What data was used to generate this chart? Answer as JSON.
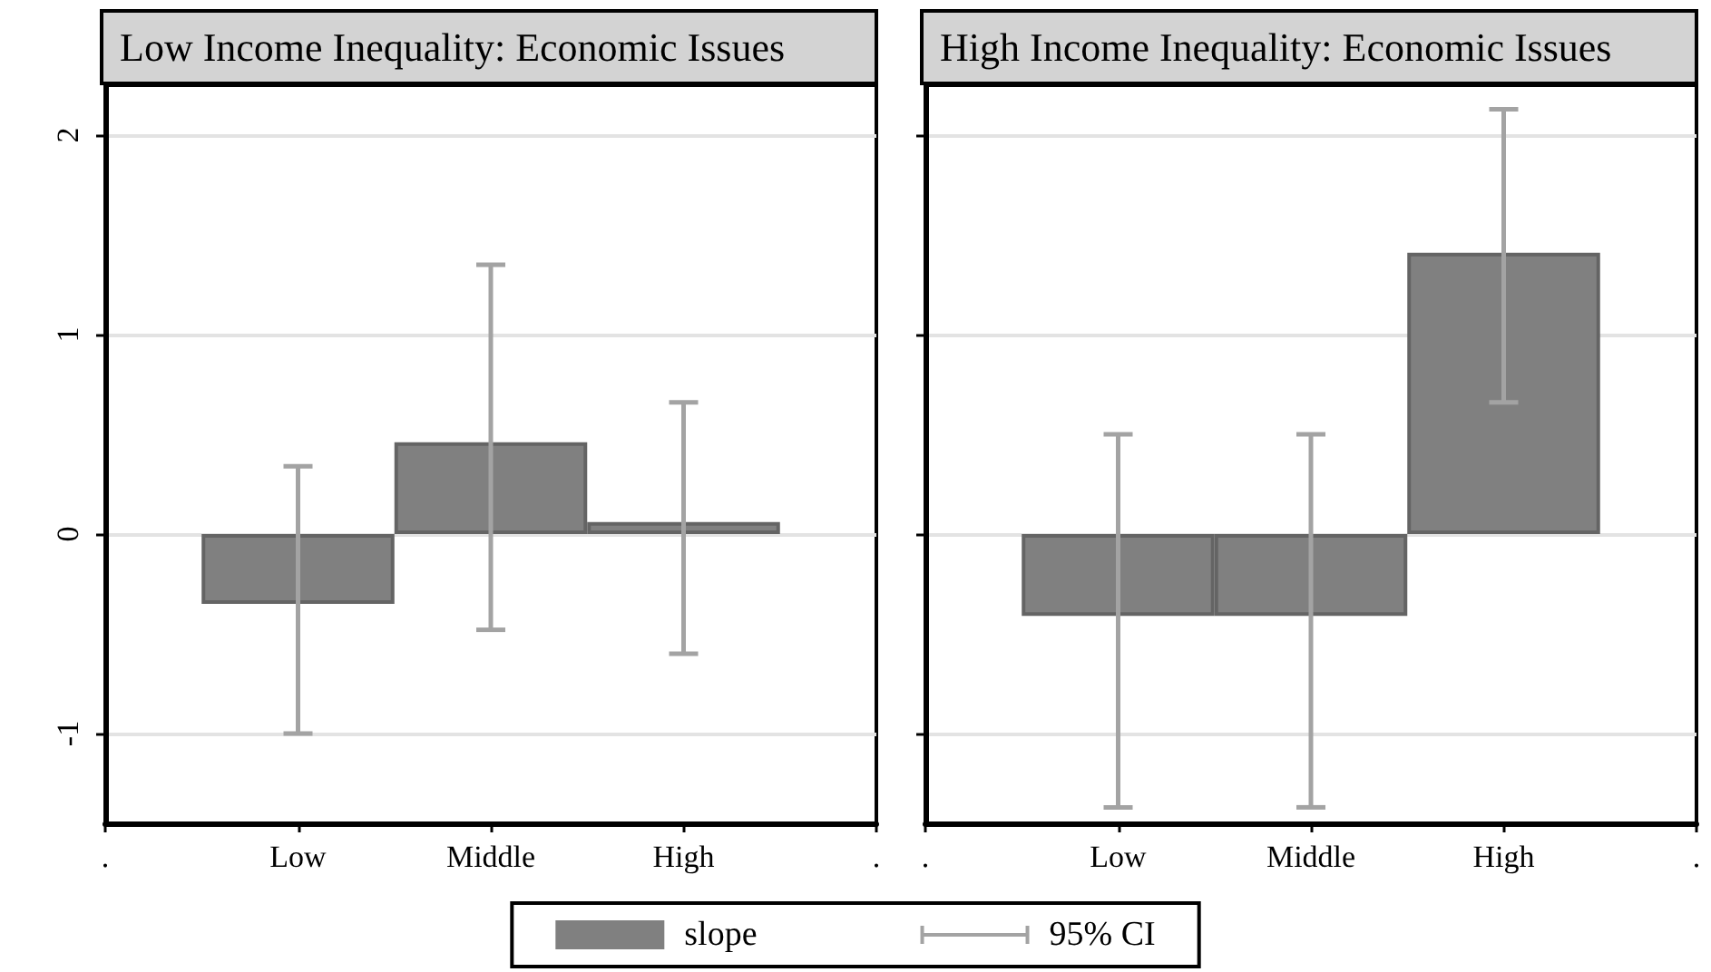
{
  "chart_data": [
    {
      "type": "bar",
      "title": "Low Income Inequality: Economic Issues",
      "categories": [
        ".",
        "Low",
        "Middle",
        "High",
        "."
      ],
      "series": [
        {
          "name": "slope",
          "color": "#808080",
          "values": [
            null,
            -0.35,
            0.46,
            0.06,
            null
          ],
          "errors": [
            null,
            [
              -1.0,
              0.34
            ],
            [
              -0.48,
              1.35
            ],
            [
              -0.6,
              0.66
            ],
            null
          ]
        }
      ],
      "ylim": [
        -1.45,
        2.25
      ],
      "yticks": [
        -1,
        0,
        1,
        2
      ],
      "grid": "y",
      "legend": "bottom",
      "annotations": [
        "95% CI"
      ]
    },
    {
      "type": "bar",
      "title": "High Income Inequality: Economic Issues",
      "categories": [
        ".",
        "Low",
        "Middle",
        "High",
        "."
      ],
      "series": [
        {
          "color": "#808080",
          "values": [
            null,
            -0.41,
            -0.41,
            1.41,
            null
          ],
          "errors": [
            null,
            [
              -1.37,
              0.5
            ],
            [
              -1.37,
              0.5
            ],
            [
              0.66,
              2.13
            ],
            null
          ]
        }
      ],
      "ylim": [
        -1.45,
        2.25
      ],
      "yticks": [
        -1,
        0,
        1,
        2
      ],
      "grid": "y",
      "tick_labels": "x"
    }
  ]
}
